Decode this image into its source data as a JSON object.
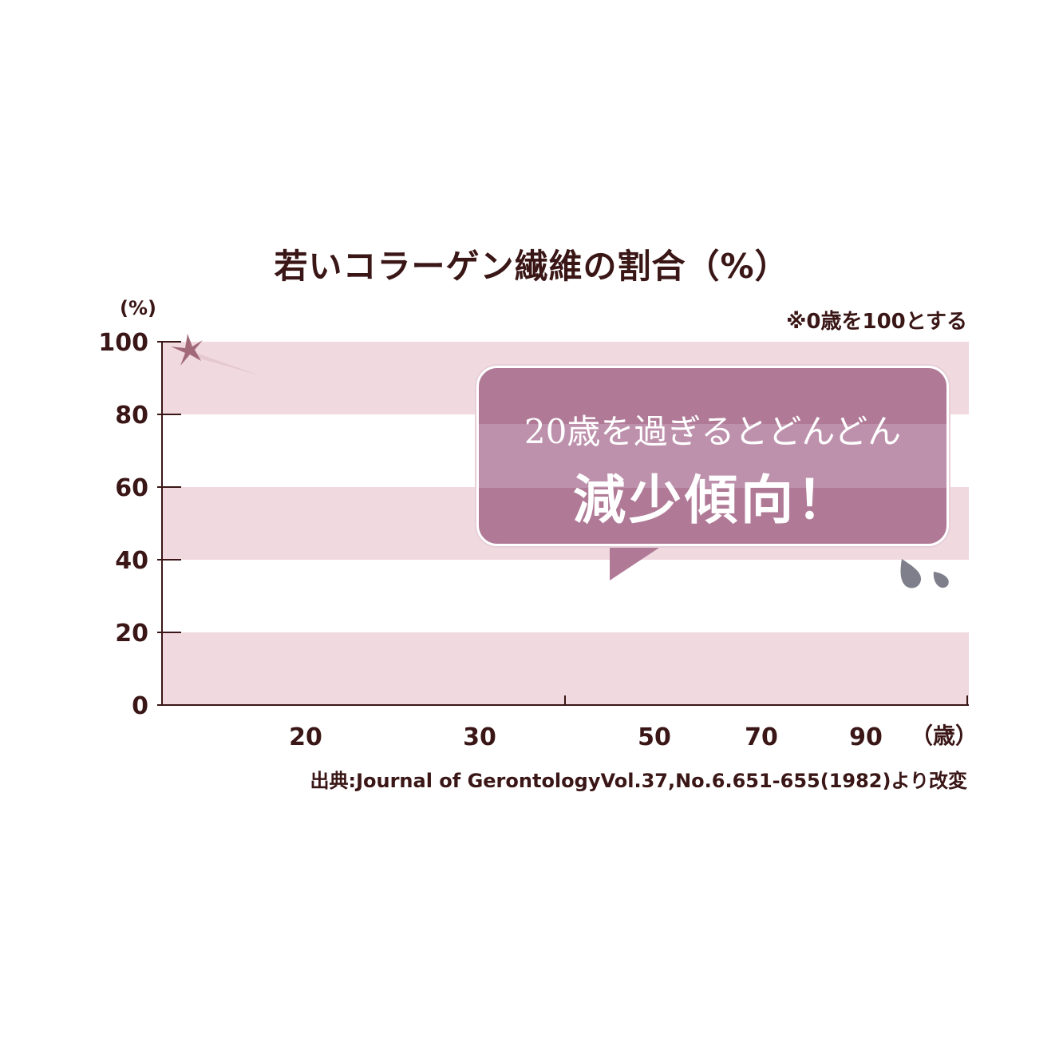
{
  "title": "若いコラーゲン繊維の割合（%）",
  "note": "※0歳を100とする",
  "source": "出典:Journal of GerontologyVol.37,No.6.651-655(1982)より改変",
  "callout": {
    "line1": "20歳を過ぎるとどんどん",
    "line2": "減少傾向！"
  },
  "chart_data": {
    "type": "line",
    "ylabel": "(%)",
    "xunit": "（歳）",
    "ylim": [
      0,
      100
    ],
    "yticks": [
      "0",
      "20",
      "40",
      "60",
      "80",
      "100"
    ],
    "xticks": [
      "20",
      "30",
      "50",
      "70",
      "90"
    ],
    "grid": "horizontal bands",
    "series": []
  },
  "colors": {
    "band": "#f0d9df",
    "axis": "#3a1616",
    "bubble": "#b07a97",
    "sparkle": "#a26a78",
    "drops": "#7e7f8b"
  }
}
